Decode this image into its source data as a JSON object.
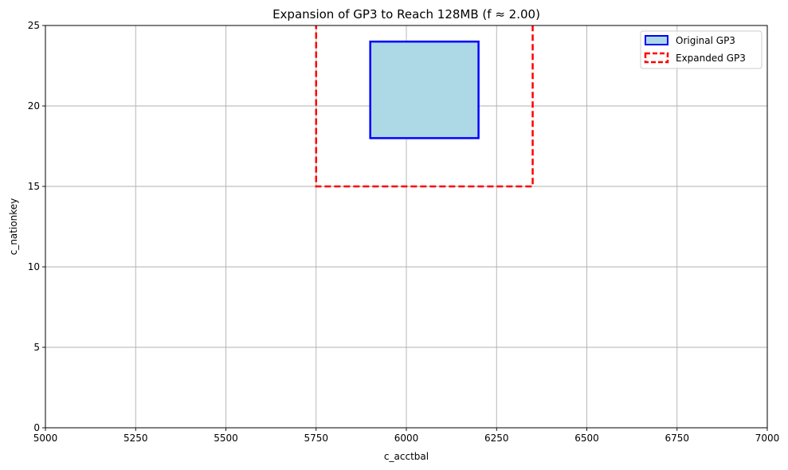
{
  "chart_data": {
    "type": "rect",
    "title": "Expansion of GP3 to Reach 128MB (f ≈ 2.00)",
    "xlabel": "c_acctbal",
    "ylabel": "c_nationkey",
    "xlim": [
      5000,
      7000
    ],
    "ylim": [
      0,
      25
    ],
    "xticks": [
      5000,
      5250,
      5500,
      5750,
      6000,
      6250,
      6500,
      6750,
      7000
    ],
    "yticks": [
      0,
      5,
      10,
      15,
      20,
      25
    ],
    "grid": true,
    "legend_position": "top-right",
    "series": [
      {
        "name": "Original GP3",
        "x0": 5900,
        "x1": 6200,
        "y0": 18,
        "y1": 24,
        "fill": "#add8e6",
        "edge": "#0000ff",
        "style": "solid"
      },
      {
        "name": "Expanded GP3",
        "x0": 5750,
        "x1": 6350,
        "y0": 15,
        "y1": 30,
        "fill": "none",
        "edge": "#ff0000",
        "style": "dashed"
      }
    ]
  }
}
